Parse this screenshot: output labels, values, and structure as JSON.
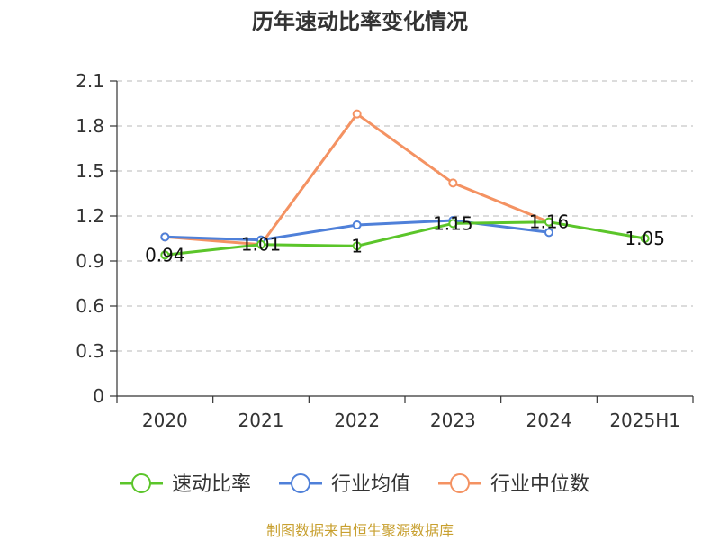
{
  "chart_data": {
    "type": "line",
    "title": "历年速动比率变化情况",
    "categories": [
      "2020",
      "2021",
      "2022",
      "2023",
      "2024",
      "2025H1"
    ],
    "yticks": [
      "0",
      "0.3",
      "0.6",
      "0.9",
      "1.2",
      "1.5",
      "1.8",
      "2.1"
    ],
    "ylim": [
      0,
      2.1
    ],
    "grid": true,
    "legend_position": "bottom",
    "series": [
      {
        "name": "速动比率",
        "color": "#5bc52a",
        "values": [
          0.94,
          1.01,
          1.0,
          1.15,
          1.16,
          1.05
        ],
        "labels": [
          "0.94",
          "1.01",
          "1",
          "1.15",
          "1.16",
          "1.05"
        ]
      },
      {
        "name": "行业均值",
        "color": "#4f80d9",
        "values": [
          1.06,
          1.04,
          1.14,
          1.17,
          1.09,
          null
        ]
      },
      {
        "name": "行业中位数",
        "color": "#f49262",
        "values": [
          1.06,
          1.01,
          1.88,
          1.42,
          1.16,
          null
        ]
      }
    ]
  },
  "footer": {
    "source": "制图数据来自恒生聚源数据库"
  }
}
